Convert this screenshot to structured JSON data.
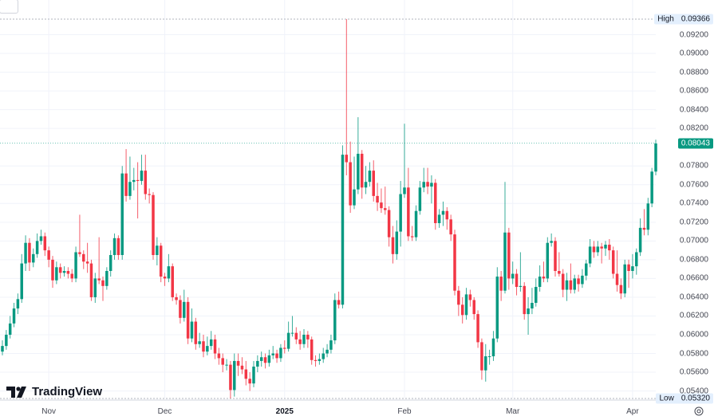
{
  "chart_data": {
    "type": "candlestick",
    "title": "",
    "xlabel": "",
    "ylabel": "",
    "ylim": [
      0.0532,
      0.0957
    ],
    "grid": true,
    "x_ticks": [
      {
        "label": "Nov",
        "index": 12,
        "bold": false
      },
      {
        "label": "Dec",
        "index": 42,
        "bold": false
      },
      {
        "label": "2025",
        "index": 73,
        "bold": true
      },
      {
        "label": "Feb",
        "index": 104,
        "bold": false
      },
      {
        "label": "Mar",
        "index": 132,
        "bold": false
      },
      {
        "label": "Apr",
        "index": 163,
        "bold": false
      }
    ],
    "y_ticks": [
      "0.05400",
      "0.05600",
      "0.05800",
      "0.06000",
      "0.06200",
      "0.06400",
      "0.06600",
      "0.06800",
      "0.07000",
      "0.07200",
      "0.07400",
      "0.07600",
      "0.07800",
      "0.08200",
      "0.08400",
      "0.08600",
      "0.08800",
      "0.09000",
      "0.09200"
    ],
    "high": {
      "label": "High",
      "value": "0.09366"
    },
    "low": {
      "label": "Low",
      "value": "0.05320"
    },
    "last_price": "0.08043",
    "ohlc": [
      [
        0.0582,
        0.0594,
        0.0578,
        0.0588
      ],
      [
        0.0588,
        0.0605,
        0.0584,
        0.06
      ],
      [
        0.06,
        0.062,
        0.0596,
        0.0612
      ],
      [
        0.0612,
        0.0634,
        0.0608,
        0.0628
      ],
      [
        0.0628,
        0.0644,
        0.0622,
        0.0638
      ],
      [
        0.0638,
        0.0686,
        0.0634,
        0.0676
      ],
      [
        0.0676,
        0.0706,
        0.0668,
        0.0698
      ],
      [
        0.0698,
        0.0703,
        0.0668,
        0.0677
      ],
      [
        0.0677,
        0.0692,
        0.0672,
        0.0686
      ],
      [
        0.0686,
        0.0708,
        0.0682,
        0.07
      ],
      [
        0.07,
        0.0712,
        0.0696,
        0.0705
      ],
      [
        0.0705,
        0.0709,
        0.0684,
        0.069
      ],
      [
        0.069,
        0.0694,
        0.0672,
        0.068
      ],
      [
        0.068,
        0.0684,
        0.065,
        0.0658
      ],
      [
        0.0658,
        0.0678,
        0.0654,
        0.0672
      ],
      [
        0.0672,
        0.0676,
        0.066,
        0.0666
      ],
      [
        0.0666,
        0.0673,
        0.0662,
        0.0668
      ],
      [
        0.0668,
        0.0672,
        0.066,
        0.0665
      ],
      [
        0.0665,
        0.067,
        0.0656,
        0.066
      ],
      [
        0.066,
        0.0694,
        0.0656,
        0.0688
      ],
      [
        0.0688,
        0.0728,
        0.0683,
        0.0686
      ],
      [
        0.0686,
        0.069,
        0.067,
        0.0678
      ],
      [
        0.0678,
        0.0698,
        0.0666,
        0.0676
      ],
      [
        0.0676,
        0.068,
        0.0636,
        0.064
      ],
      [
        0.064,
        0.0666,
        0.0634,
        0.066
      ],
      [
        0.066,
        0.0704,
        0.0654,
        0.0658
      ],
      [
        0.0658,
        0.0662,
        0.0636,
        0.0652
      ],
      [
        0.0652,
        0.0672,
        0.0648,
        0.0668
      ],
      [
        0.0668,
        0.069,
        0.0662,
        0.0685
      ],
      [
        0.0685,
        0.0708,
        0.068,
        0.0703
      ],
      [
        0.0703,
        0.0706,
        0.068,
        0.0685
      ],
      [
        0.0685,
        0.078,
        0.068,
        0.0772
      ],
      [
        0.0772,
        0.0798,
        0.0742,
        0.0748
      ],
      [
        0.0748,
        0.079,
        0.0744,
        0.0763
      ],
      [
        0.0763,
        0.0778,
        0.0754,
        0.0765
      ],
      [
        0.0765,
        0.0784,
        0.0724,
        0.0764
      ],
      [
        0.0764,
        0.0792,
        0.076,
        0.0775
      ],
      [
        0.0775,
        0.0792,
        0.0744,
        0.075
      ],
      [
        0.075,
        0.0756,
        0.074,
        0.0749
      ],
      [
        0.0749,
        0.0752,
        0.068,
        0.0685
      ],
      [
        0.0685,
        0.0704,
        0.0674,
        0.0695
      ],
      [
        0.0695,
        0.0698,
        0.0656,
        0.0662
      ],
      [
        0.0662,
        0.0666,
        0.0652,
        0.066
      ],
      [
        0.066,
        0.0686,
        0.0656,
        0.0673
      ],
      [
        0.0673,
        0.0676,
        0.0636,
        0.064
      ],
      [
        0.064,
        0.0644,
        0.0632,
        0.0637
      ],
      [
        0.0637,
        0.0642,
        0.0612,
        0.0618
      ],
      [
        0.0618,
        0.0648,
        0.0614,
        0.0635
      ],
      [
        0.0635,
        0.064,
        0.059,
        0.0596
      ],
      [
        0.0596,
        0.0628,
        0.0592,
        0.0614
      ],
      [
        0.0614,
        0.0618,
        0.0584,
        0.059
      ],
      [
        0.059,
        0.0602,
        0.0586,
        0.0593
      ],
      [
        0.0593,
        0.06,
        0.0576,
        0.0582
      ],
      [
        0.0582,
        0.0598,
        0.0578,
        0.0588
      ],
      [
        0.0588,
        0.0604,
        0.0584,
        0.0595
      ],
      [
        0.0595,
        0.06,
        0.0574,
        0.058
      ],
      [
        0.058,
        0.0586,
        0.0568,
        0.0575
      ],
      [
        0.0575,
        0.058,
        0.056,
        0.0568
      ],
      [
        0.0568,
        0.0574,
        0.0562,
        0.0568
      ],
      [
        0.0568,
        0.0572,
        0.0532,
        0.0541
      ],
      [
        0.0541,
        0.058,
        0.0534,
        0.0572
      ],
      [
        0.0572,
        0.058,
        0.0556,
        0.0567
      ],
      [
        0.0567,
        0.0576,
        0.0558,
        0.0563
      ],
      [
        0.0563,
        0.0572,
        0.0546,
        0.0553
      ],
      [
        0.0553,
        0.056,
        0.054,
        0.0548
      ],
      [
        0.0548,
        0.0572,
        0.0544,
        0.0566
      ],
      [
        0.0566,
        0.0578,
        0.056,
        0.0572
      ],
      [
        0.0572,
        0.0582,
        0.0566,
        0.0576
      ],
      [
        0.0576,
        0.058,
        0.0564,
        0.057
      ],
      [
        0.057,
        0.0584,
        0.0566,
        0.0578
      ],
      [
        0.0578,
        0.0588,
        0.0574,
        0.058
      ],
      [
        0.058,
        0.0584,
        0.057,
        0.0575
      ],
      [
        0.0575,
        0.059,
        0.0571,
        0.0586
      ],
      [
        0.0586,
        0.0594,
        0.058,
        0.0585
      ],
      [
        0.0585,
        0.0614,
        0.0582,
        0.0602
      ],
      [
        0.0602,
        0.062,
        0.0598,
        0.0602
      ],
      [
        0.0602,
        0.0608,
        0.059,
        0.0595
      ],
      [
        0.0595,
        0.0604,
        0.0584,
        0.059
      ],
      [
        0.059,
        0.0606,
        0.0586,
        0.06
      ],
      [
        0.06,
        0.0604,
        0.0586,
        0.0595
      ],
      [
        0.0595,
        0.0598,
        0.0568,
        0.0573
      ],
      [
        0.0573,
        0.0578,
        0.0566,
        0.0572
      ],
      [
        0.0572,
        0.058,
        0.0568,
        0.0574
      ],
      [
        0.0574,
        0.0586,
        0.057,
        0.058
      ],
      [
        0.058,
        0.059,
        0.0576,
        0.0584
      ],
      [
        0.0584,
        0.06,
        0.058,
        0.0594
      ],
      [
        0.0594,
        0.0644,
        0.059,
        0.0637
      ],
      [
        0.0637,
        0.0646,
        0.0628,
        0.0632
      ],
      [
        0.0632,
        0.0802,
        0.0628,
        0.0792
      ],
      [
        0.0792,
        0.09366,
        0.077,
        0.0784
      ],
      [
        0.0784,
        0.0806,
        0.073,
        0.0738
      ],
      [
        0.0738,
        0.079,
        0.0734,
        0.0755
      ],
      [
        0.0755,
        0.0832,
        0.075,
        0.0793
      ],
      [
        0.0793,
        0.0797,
        0.0745,
        0.0757
      ],
      [
        0.0757,
        0.078,
        0.075,
        0.0763
      ],
      [
        0.0763,
        0.0784,
        0.0758,
        0.0775
      ],
      [
        0.0775,
        0.0786,
        0.0742,
        0.0748
      ],
      [
        0.0748,
        0.0762,
        0.0732,
        0.0741
      ],
      [
        0.0741,
        0.0756,
        0.073,
        0.0735
      ],
      [
        0.0735,
        0.0758,
        0.0728,
        0.0733
      ],
      [
        0.0733,
        0.0737,
        0.0694,
        0.0704
      ],
      [
        0.0704,
        0.0716,
        0.0676,
        0.0686
      ],
      [
        0.0686,
        0.0722,
        0.068,
        0.071
      ],
      [
        0.071,
        0.0764,
        0.0694,
        0.075
      ],
      [
        0.075,
        0.0825,
        0.0746,
        0.0757
      ],
      [
        0.0757,
        0.0778,
        0.07,
        0.0705
      ],
      [
        0.0705,
        0.0716,
        0.07,
        0.0704
      ],
      [
        0.0704,
        0.0738,
        0.07,
        0.0732
      ],
      [
        0.0732,
        0.0764,
        0.0728,
        0.0757
      ],
      [
        0.0757,
        0.0778,
        0.0752,
        0.0763
      ],
      [
        0.0763,
        0.0778,
        0.075,
        0.0758
      ],
      [
        0.0758,
        0.077,
        0.074,
        0.0762
      ],
      [
        0.0762,
        0.0766,
        0.0712,
        0.0719
      ],
      [
        0.0719,
        0.0734,
        0.0714,
        0.0728
      ],
      [
        0.0728,
        0.0742,
        0.0716,
        0.0732
      ],
      [
        0.0732,
        0.0736,
        0.0712,
        0.0723
      ],
      [
        0.0723,
        0.0728,
        0.07,
        0.0707
      ],
      [
        0.0707,
        0.0712,
        0.0642,
        0.0647
      ],
      [
        0.0647,
        0.0652,
        0.062,
        0.0632
      ],
      [
        0.0632,
        0.064,
        0.0612,
        0.0621
      ],
      [
        0.0621,
        0.065,
        0.0616,
        0.0643
      ],
      [
        0.0643,
        0.0648,
        0.063,
        0.0637
      ],
      [
        0.0637,
        0.064,
        0.0616,
        0.0622
      ],
      [
        0.0622,
        0.0626,
        0.0586,
        0.0592
      ],
      [
        0.0592,
        0.0596,
        0.0552,
        0.0562
      ],
      [
        0.0562,
        0.059,
        0.055,
        0.0577
      ],
      [
        0.0577,
        0.0584,
        0.0568,
        0.0577
      ],
      [
        0.0577,
        0.0604,
        0.0572,
        0.0596
      ],
      [
        0.0596,
        0.0672,
        0.0592,
        0.0662
      ],
      [
        0.0662,
        0.0668,
        0.0636,
        0.0647
      ],
      [
        0.0647,
        0.0763,
        0.0644,
        0.0709
      ],
      [
        0.0709,
        0.0714,
        0.0648,
        0.066
      ],
      [
        0.066,
        0.0678,
        0.0654,
        0.0665
      ],
      [
        0.0665,
        0.067,
        0.0642,
        0.0651
      ],
      [
        0.0651,
        0.0688,
        0.0646,
        0.0652
      ],
      [
        0.0652,
        0.0656,
        0.0616,
        0.0622
      ],
      [
        0.0622,
        0.064,
        0.06,
        0.0628
      ],
      [
        0.0628,
        0.065,
        0.0622,
        0.0634
      ],
      [
        0.0634,
        0.066,
        0.063,
        0.0651
      ],
      [
        0.0651,
        0.0674,
        0.0646,
        0.0662
      ],
      [
        0.0662,
        0.0678,
        0.0656,
        0.066
      ],
      [
        0.066,
        0.0704,
        0.0656,
        0.0698
      ],
      [
        0.0698,
        0.0708,
        0.0694,
        0.07
      ],
      [
        0.07,
        0.0704,
        0.0662,
        0.0668
      ],
      [
        0.0668,
        0.0688,
        0.0662,
        0.0665
      ],
      [
        0.0665,
        0.067,
        0.064,
        0.0648
      ],
      [
        0.0648,
        0.0666,
        0.0636,
        0.0658
      ],
      [
        0.0658,
        0.0676,
        0.0644,
        0.0648
      ],
      [
        0.0648,
        0.0664,
        0.0644,
        0.066
      ],
      [
        0.066,
        0.0664,
        0.0646,
        0.0654
      ],
      [
        0.0654,
        0.067,
        0.065,
        0.0663
      ],
      [
        0.0663,
        0.068,
        0.0658,
        0.0676
      ],
      [
        0.0676,
        0.0702,
        0.0672,
        0.0694
      ],
      [
        0.0694,
        0.07,
        0.0682,
        0.0688
      ],
      [
        0.0688,
        0.07,
        0.0684,
        0.0694
      ],
      [
        0.0694,
        0.0698,
        0.0676,
        0.0692
      ],
      [
        0.0692,
        0.07,
        0.0684,
        0.0696
      ],
      [
        0.0696,
        0.0702,
        0.068,
        0.069
      ],
      [
        0.069,
        0.0694,
        0.066,
        0.0665
      ],
      [
        0.0665,
        0.069,
        0.0646,
        0.0653
      ],
      [
        0.0653,
        0.066,
        0.0638,
        0.0644
      ],
      [
        0.0644,
        0.068,
        0.064,
        0.0675
      ],
      [
        0.0675,
        0.068,
        0.065,
        0.0668
      ],
      [
        0.0668,
        0.0686,
        0.066,
        0.0673
      ],
      [
        0.0673,
        0.0692,
        0.0664,
        0.0688
      ],
      [
        0.0688,
        0.0724,
        0.0684,
        0.0714
      ],
      [
        0.0714,
        0.0734,
        0.0706,
        0.0712
      ],
      [
        0.0712,
        0.0746,
        0.0706,
        0.074
      ],
      [
        0.074,
        0.0778,
        0.0736,
        0.0774
      ],
      [
        0.0774,
        0.0808,
        0.077,
        0.0804
      ]
    ]
  },
  "colors": {
    "up": "#089981",
    "down": "#f23645",
    "grid": "#f0f3fa"
  },
  "brand": {
    "name": "TradingView"
  }
}
